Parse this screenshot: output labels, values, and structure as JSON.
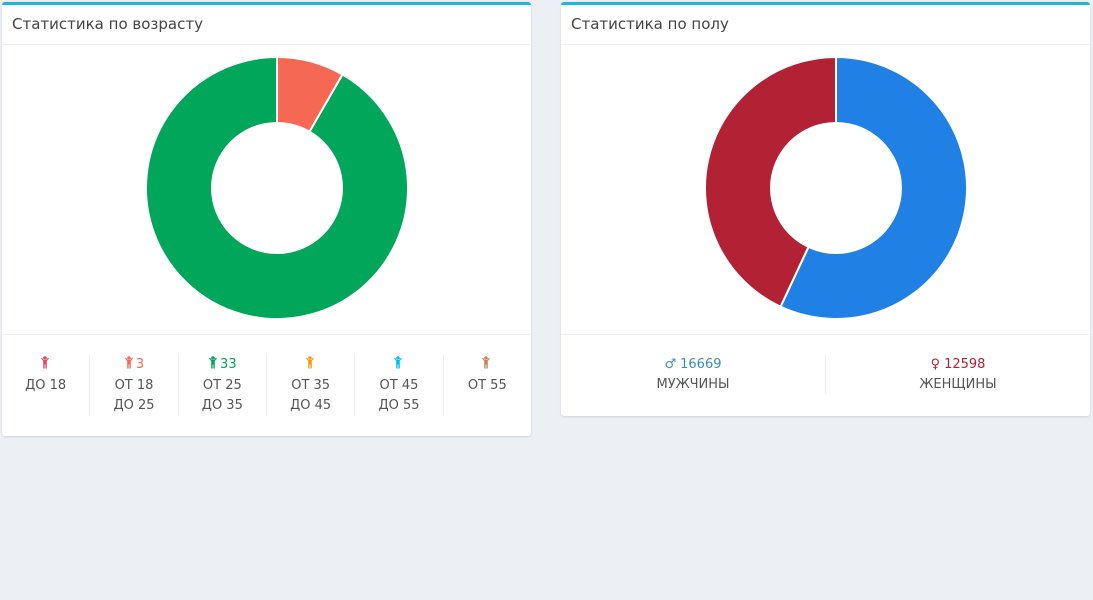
{
  "panels": {
    "age": {
      "title": "Статистика по возрасту",
      "groups": [
        {
          "line1": "ДО 18",
          "line2": "",
          "count": "",
          "color": "#dc4c64",
          "icon": "person-icon"
        },
        {
          "line1": "ОТ 18",
          "line2": "ДО 25",
          "count": "3",
          "color": "#f56954",
          "icon": "person-icon"
        },
        {
          "line1": "ОТ 25",
          "line2": "ДО 35",
          "count": "33",
          "color": "#00a65a",
          "icon": "person-icon"
        },
        {
          "line1": "ОТ 35",
          "line2": "ДО 45",
          "count": "",
          "color": "#f39c12",
          "icon": "person-icon"
        },
        {
          "line1": "ОТ 45",
          "line2": "ДО 55",
          "count": "",
          "color": "#00c0ef",
          "icon": "person-icon"
        },
        {
          "line1": "ОТ 55",
          "line2": "",
          "count": "",
          "color": "#c9845a",
          "icon": "person-icon"
        }
      ]
    },
    "gender": {
      "title": "Статистика по полу",
      "groups": [
        {
          "label": "МУЖЧИНЫ",
          "count": "16669",
          "symbol": "♂",
          "color": "#3c8dbc"
        },
        {
          "label": "ЖЕНЩИНЫ",
          "count": "12598",
          "symbol": "♀",
          "color": "#b22234"
        }
      ]
    }
  },
  "chart_data": [
    {
      "type": "pie",
      "categories": [
        "ДО 18",
        "ОТ 18 ДО 25",
        "ОТ 25 ДО 35",
        "ОТ 35 ДО 45",
        "ОТ 45 ДО 55",
        "ОТ 55"
      ],
      "values": [
        0,
        3,
        33,
        0,
        0,
        0
      ],
      "colors": [
        "#dc4c64",
        "#f56954",
        "#00a65a",
        "#f39c12",
        "#00c0ef",
        "#c9845a"
      ],
      "title": "Статистика по возрасту"
    },
    {
      "type": "pie",
      "categories": [
        "МУЖЧИНЫ",
        "ЖЕНЩИНЫ"
      ],
      "values": [
        16669,
        12598
      ],
      "colors": [
        "#2180e3",
        "#b22234"
      ],
      "title": "Статистика по полу"
    }
  ]
}
